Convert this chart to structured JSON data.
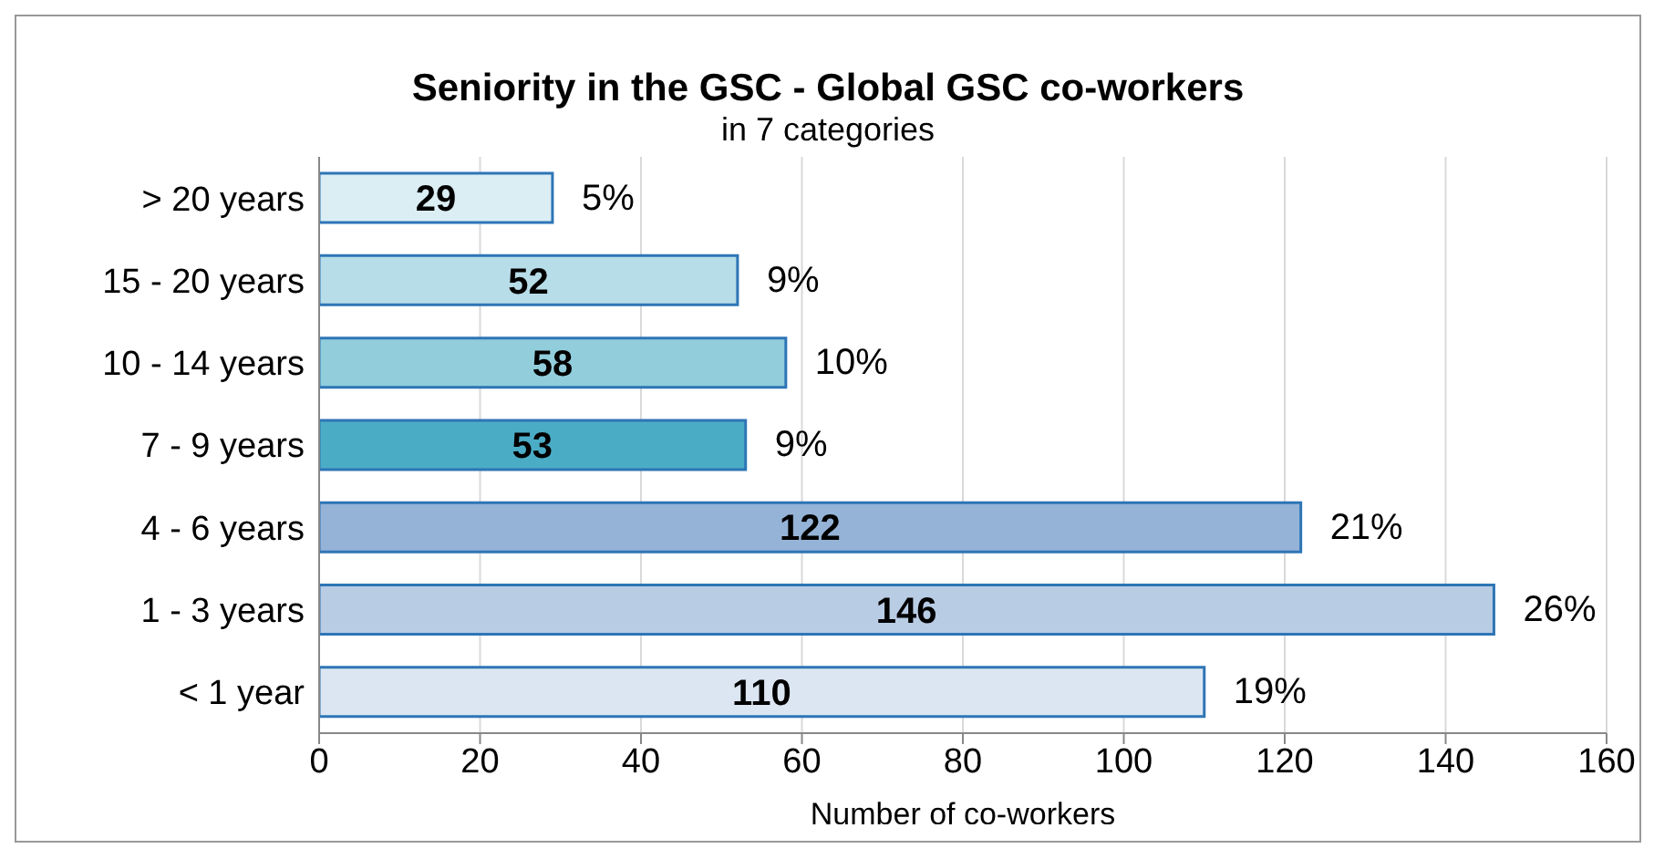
{
  "chart_data": {
    "type": "bar",
    "orientation": "horizontal",
    "title": "Seniority in the GSC - Global GSC co-workers",
    "subtitle": "in 7 categories",
    "xlabel": "Number  of co-workers",
    "categories": [
      "> 20 years",
      "15 - 20 years",
      "10 - 14 years",
      "7 - 9 years",
      "4 - 6 years",
      "1 - 3 years",
      "< 1 year"
    ],
    "values": [
      29,
      52,
      58,
      53,
      122,
      146,
      110
    ],
    "colors": [
      "#dbeef4",
      "#b7dde8",
      "#92cddc",
      "#4bacc6",
      "#95b3d7",
      "#b8cce4",
      "#dce6f2"
    ],
    "data_labels": true,
    "annotations": [
      "5%",
      "9%",
      "10%",
      "9%",
      "21%",
      "26%",
      "19%"
    ],
    "xlim": [
      0,
      160
    ],
    "xticks": [
      0,
      20,
      40,
      60,
      80,
      100,
      120,
      140,
      160
    ],
    "grid": "x"
  }
}
